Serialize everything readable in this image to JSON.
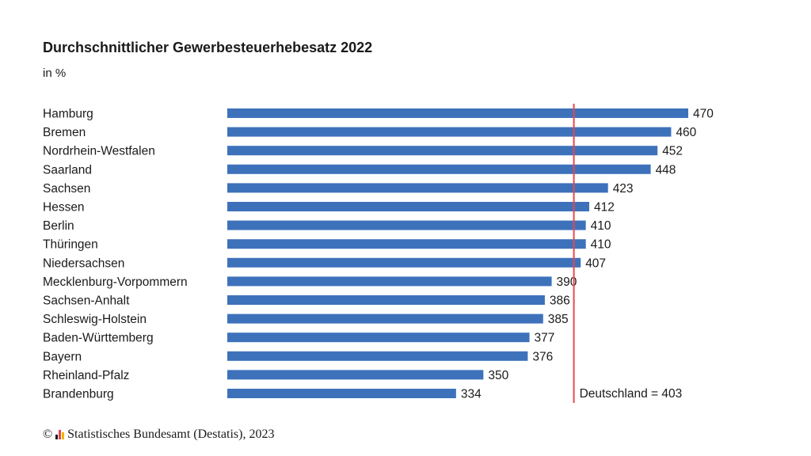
{
  "chart_data": {
    "type": "bar",
    "orientation": "horizontal",
    "title": "Durchschnittlicher Gewerbesteuerhebesatz 2022",
    "subtitle": "in %",
    "categories": [
      "Hamburg",
      "Bremen",
      "Nordrhein-Westfalen",
      "Saarland",
      "Sachsen",
      "Hessen",
      "Berlin",
      "Thüringen",
      "Niedersachsen",
      "Mecklenburg-Vorpommern",
      "Sachsen-Anhalt",
      "Schleswig-Holstein",
      "Baden-Württemberg",
      "Bayern",
      "Rheinland-Pfalz",
      "Brandenburg"
    ],
    "values": [
      470,
      460,
      452,
      448,
      423,
      412,
      410,
      410,
      407,
      390,
      386,
      385,
      377,
      376,
      350,
      334
    ],
    "reference_line": {
      "value": 403,
      "label": "Deutschland = 403"
    },
    "xlim": [
      200,
      470
    ],
    "grid": false,
    "bar_color": "#3d72bb",
    "reference_color": "#e8474c"
  },
  "footer": {
    "copyright_symbol": "©",
    "source": "Statistisches Bundesamt (Destatis), 2023",
    "logo_colors": [
      "#1a1a1a",
      "#e8474c",
      "#f0b400"
    ]
  }
}
